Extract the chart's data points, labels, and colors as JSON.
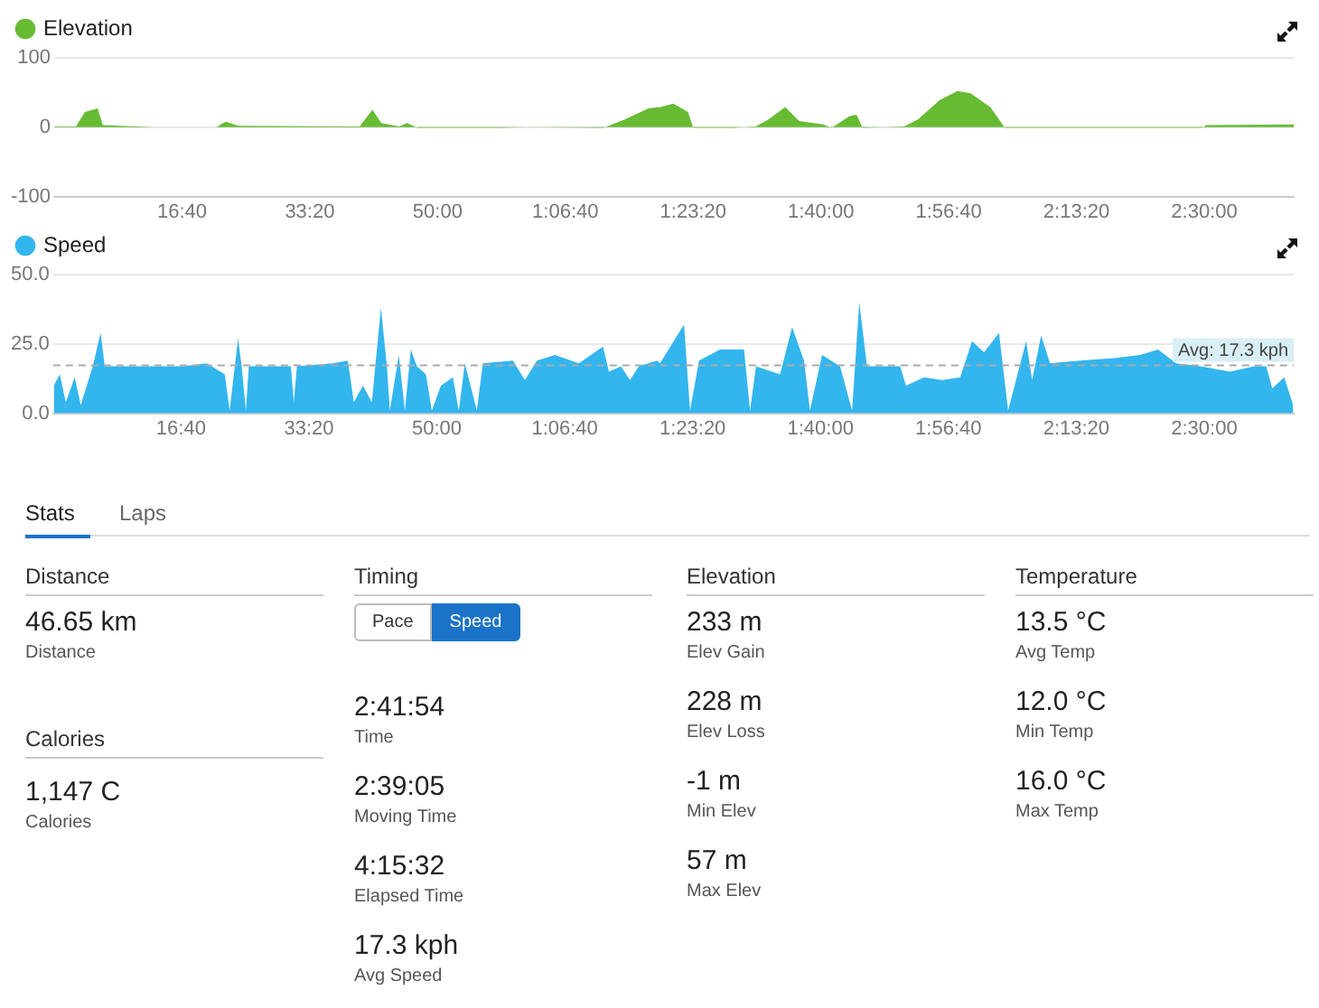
{
  "chart_data": [
    {
      "type": "area",
      "legend": "top left",
      "grid": "y",
      "xlim": [
        0,
        9700
      ],
      "ylim": [
        -100,
        100
      ],
      "yticks": [
        100,
        0,
        -100
      ],
      "xticks": [
        {
          "value": 1000,
          "label": "16:40"
        },
        {
          "value": 2000,
          "label": "33:20"
        },
        {
          "value": 3000,
          "label": "50:00"
        },
        {
          "value": 4000,
          "label": "1:06:40"
        },
        {
          "value": 5000,
          "label": "1:23:20"
        },
        {
          "value": 6000,
          "label": "1:40:00"
        },
        {
          "value": 7000,
          "label": "1:56:40"
        },
        {
          "value": 8000,
          "label": "2:13:20"
        },
        {
          "value": 9000,
          "label": "2:30:00"
        }
      ],
      "x": [
        0,
        170,
        240,
        340,
        380,
        775,
        1270,
        1340,
        1440,
        2390,
        2490,
        2560,
        2700,
        2760,
        2845,
        3480,
        3690,
        4300,
        4465,
        4650,
        4745,
        4845,
        4960,
        5000,
        5310,
        5490,
        5590,
        5720,
        5830,
        6015,
        6085,
        6225,
        6280,
        6325,
        6650,
        6760,
        6930,
        7070,
        7170,
        7325,
        7440,
        8055,
        8985,
        9015,
        9700
      ],
      "series": [
        {
          "name": "Elevation",
          "color": "#66bb33",
          "values": [
            1,
            1,
            22,
            27,
            3,
            0,
            0,
            8,
            2,
            1,
            25,
            6,
            1,
            6,
            -1,
            -1,
            0,
            -1,
            11,
            27,
            29,
            34,
            22,
            -1,
            -1,
            1,
            11,
            29,
            9,
            4,
            -1,
            16,
            18,
            -1,
            1,
            11,
            39,
            52,
            49,
            29,
            -1,
            -1,
            -1,
            3,
            4
          ]
        }
      ]
    },
    {
      "type": "area",
      "legend": "top left",
      "grid": "y",
      "xlim": [
        0,
        9700
      ],
      "ylim": [
        0,
        50
      ],
      "yticks": [
        {
          "value": 0,
          "label": "0.0"
        },
        {
          "value": 25,
          "label": "25.0"
        },
        {
          "value": 50,
          "label": "50.0"
        }
      ],
      "xticks": [
        {
          "value": 1000,
          "label": "16:40"
        },
        {
          "value": 2000,
          "label": "33:20"
        },
        {
          "value": 3000,
          "label": "50:00"
        },
        {
          "value": 4000,
          "label": "1:06:40"
        },
        {
          "value": 5000,
          "label": "1:23:20"
        },
        {
          "value": 6000,
          "label": "1:40:00"
        },
        {
          "value": 7000,
          "label": "1:56:40"
        },
        {
          "value": 8000,
          "label": "2:13:20"
        },
        {
          "value": 9000,
          "label": "2:30:00"
        }
      ],
      "ref_lines": [
        {
          "axis": "y",
          "value": 17.3,
          "label": "Avg: 17.3 kph",
          "color": "#aaaaaa",
          "line_style": "dashed"
        }
      ],
      "x": [
        5,
        52,
        99,
        169,
        216,
        310,
        371,
        404,
        544,
        779,
        1014,
        1201,
        1342,
        1380,
        1446,
        1474,
        1507,
        1530,
        1859,
        1882,
        1906,
        2187,
        2304,
        2351,
        2422,
        2492,
        2563,
        2610,
        2633,
        2703,
        2750,
        2797,
        2844,
        2915,
        2961,
        3032,
        3126,
        3172,
        3219,
        3313,
        3360,
        3595,
        3689,
        3783,
        3924,
        4111,
        4299,
        4346,
        4440,
        4510,
        4580,
        4721,
        4745,
        4933,
        4980,
        5050,
        5214,
        5402,
        5449,
        5496,
        5684,
        5778,
        5871,
        5918,
        6012,
        6153,
        6247,
        6303,
        6364,
        6622,
        6669,
        6810,
        6951,
        7092,
        7185,
        7279,
        7396,
        7467,
        7608,
        7655,
        7725,
        7795,
        8030,
        8312,
        8499,
        8640,
        8781,
        8969,
        9203,
        9391,
        9485,
        9532,
        9626,
        9696
      ],
      "series": [
        {
          "name": "Speed",
          "color": "#33b5ee",
          "values": [
            10,
            14,
            4,
            13,
            3,
            17,
            29,
            17,
            17,
            17,
            17,
            18,
            14,
            1,
            27,
            17,
            1,
            17,
            17,
            4,
            17,
            18,
            19,
            4,
            10,
            4,
            38,
            17,
            1,
            21,
            1,
            23,
            17,
            14,
            1,
            10,
            13,
            1,
            18,
            1,
            18,
            19,
            12,
            19,
            21,
            18,
            24,
            15,
            17,
            12,
            17,
            19,
            18,
            32,
            1,
            19,
            23,
            23,
            1,
            17,
            14,
            31,
            19,
            1,
            21,
            17,
            1,
            40,
            17,
            17,
            10,
            13,
            12,
            13,
            26,
            22,
            29,
            1,
            26,
            12,
            28,
            18,
            19,
            20,
            21,
            23,
            18,
            17,
            15,
            17,
            17,
            9,
            13,
            3
          ]
        }
      ]
    },
    {
      "type": "other",
      "annotations": [
        "Stats",
        "Laps",
        "Distance",
        "46.65 km",
        "Distance",
        "Calories",
        "1,147 C",
        "Calories",
        "Timing",
        "Pace",
        "Speed",
        "2:41:54",
        "Time",
        "2:39:05",
        "Moving Time",
        "4:15:32",
        "Elapsed Time",
        "17.3 kph",
        "Avg Speed",
        "Elevation",
        "233 m",
        "Elev Gain",
        "228 m",
        "Elev Loss",
        "-1 m",
        "Min Elev",
        "57 m",
        "Max Elev",
        "Temperature",
        "13.5 °C",
        "Avg Temp",
        "12.0 °C",
        "Min Temp",
        "16.0 °C",
        "Max Temp"
      ]
    }
  ]
}
